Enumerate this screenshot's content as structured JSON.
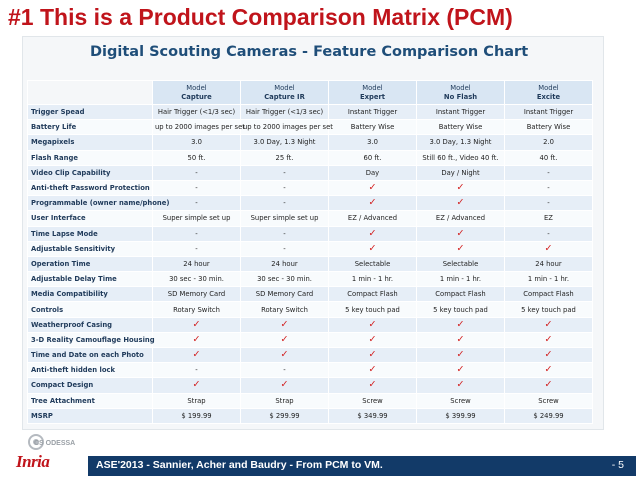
{
  "slide": {
    "title": "#1 This is a Product Comparison Matrix (PCM)",
    "chart_title": "Digital Scouting Cameras - Feature Comparison Chart",
    "footer": "ASE'2013 - Sannier, Acher and Baudry - From PCM to VM.",
    "page": "- 5",
    "logo_text": "Inria",
    "logo_sub": "CS ODESSA"
  },
  "colors": {
    "title_red": "#c0141b",
    "chart_title_blue": "#1f4e79",
    "header_bg": "#d9e6f3",
    "row_stripe": "#e6eef7",
    "check_red": "#d11a1a",
    "footer_bg": "#123a68"
  },
  "check_glyph": "✓",
  "columns": [
    {
      "model_label": "Model",
      "name": "Capture"
    },
    {
      "model_label": "Model",
      "name": "Capture IR"
    },
    {
      "model_label": "Model",
      "name": "Expert"
    },
    {
      "model_label": "Model",
      "name": "No Flash"
    },
    {
      "model_label": "Model",
      "name": "Excite"
    }
  ],
  "rows": [
    {
      "feature": "Trigger Spead",
      "values": [
        "Hair Trigger (<1/3 sec)",
        "Hair Trigger (<1/3 sec)",
        "Instant Trigger",
        "Instant Trigger",
        "Instant Trigger"
      ]
    },
    {
      "feature": "Battery Life",
      "values": [
        "up to 2000 images per set",
        "up to 2000 images per set",
        "Battery Wise",
        "Battery Wise",
        "Battery Wise"
      ]
    },
    {
      "feature": "Megapixels",
      "values": [
        "3.0",
        "3.0 Day, 1.3 Night",
        "3.0",
        "3.0 Day, 1.3 Night",
        "2.0"
      ]
    },
    {
      "feature": "Flash Range",
      "values": [
        "50 ft.",
        "25 ft.",
        "60 ft.",
        "Still 60 ft., Video 40 ft.",
        "40 ft."
      ]
    },
    {
      "feature": "Video Clip Capability",
      "values": [
        "-",
        "-",
        "Day",
        "Day / Night",
        "-"
      ]
    },
    {
      "feature": "Anti-theft Password Protection",
      "values": [
        "-",
        "-",
        "✓",
        "✓",
        "-"
      ]
    },
    {
      "feature": "Programmable (owner name/phone)",
      "values": [
        "-",
        "-",
        "✓",
        "✓",
        "-"
      ]
    },
    {
      "feature": "User Interface",
      "values": [
        "Super simple set up",
        "Super simple set up",
        "EZ / Advanced",
        "EZ / Advanced",
        "EZ"
      ]
    },
    {
      "feature": "Time Lapse Mode",
      "values": [
        "-",
        "-",
        "✓",
        "✓",
        "-"
      ]
    },
    {
      "feature": "Adjustable Sensitivity",
      "values": [
        "-",
        "-",
        "✓",
        "✓",
        "✓"
      ]
    },
    {
      "feature": "Operation Time",
      "values": [
        "24 hour",
        "24 hour",
        "Selectable",
        "Selectable",
        "24 hour"
      ]
    },
    {
      "feature": "Adjustable Delay Time",
      "values": [
        "30 sec - 30 min.",
        "30 sec - 30 min.",
        "1 min - 1 hr.",
        "1 min - 1 hr.",
        "1 min - 1 hr."
      ]
    },
    {
      "feature": "Media Compatibility",
      "values": [
        "SD Memory Card",
        "SD Memory Card",
        "Compact Flash",
        "Compact Flash",
        "Compact Flash"
      ]
    },
    {
      "feature": "Controls",
      "values": [
        "Rotary Switch",
        "Rotary Switch",
        "5 key touch pad",
        "5 key touch pad",
        "5 key touch pad"
      ]
    },
    {
      "feature": "Weatherproof Casing",
      "values": [
        "✓",
        "✓",
        "✓",
        "✓",
        "✓"
      ]
    },
    {
      "feature": "3-D Reality Camouflage Housing",
      "values": [
        "✓",
        "✓",
        "✓",
        "✓",
        "✓"
      ]
    },
    {
      "feature": "Time and Date on each Photo",
      "values": [
        "✓",
        "✓",
        "✓",
        "✓",
        "✓"
      ]
    },
    {
      "feature": "Anti-theft hidden lock",
      "values": [
        "-",
        "-",
        "✓",
        "✓",
        "✓"
      ]
    },
    {
      "feature": "Compact Design",
      "values": [
        "✓",
        "✓",
        "✓",
        "✓",
        "✓"
      ]
    },
    {
      "feature": "Tree Attachment",
      "values": [
        "Strap",
        "Strap",
        "Screw",
        "Screw",
        "Screw"
      ]
    },
    {
      "feature": "MSRP",
      "values": [
        "$ 199.99",
        "$ 299.99",
        "$ 349.99",
        "$ 399.99",
        "$ 249.99"
      ]
    }
  ]
}
